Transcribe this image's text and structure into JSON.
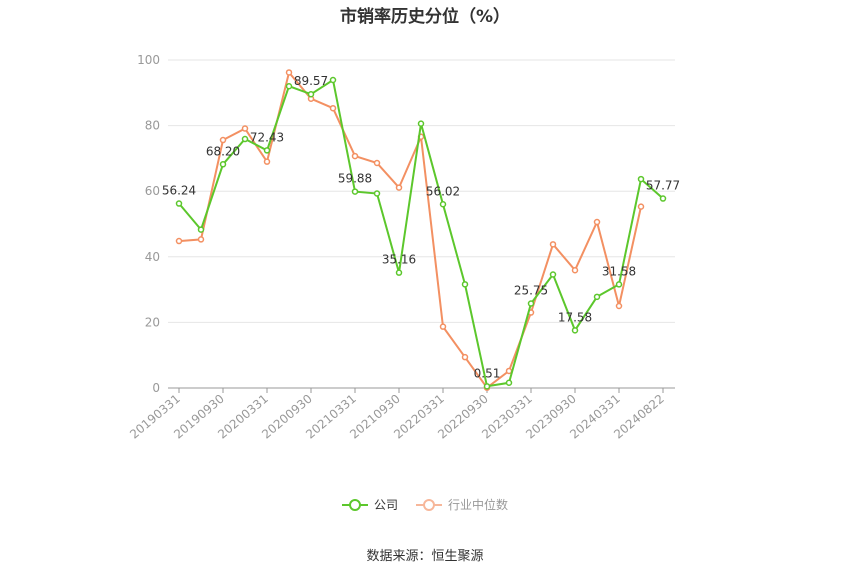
{
  "title": "市销率历史分位（%）",
  "source": "数据来源：恒生聚源",
  "colors": {
    "company": "#5cc72c",
    "industry": "#f39062",
    "grid": "#e6e6e6",
    "axis": "#999999"
  },
  "chart_data": {
    "type": "line",
    "title": "市销率历史分位（%）",
    "ylim": [
      0,
      100
    ],
    "y_ticks": [
      0,
      20,
      40,
      60,
      80,
      100
    ],
    "x": [
      "20190331",
      "20190630",
      "20190930",
      "20191231",
      "20200331",
      "20200630",
      "20200930",
      "20201231",
      "20210331",
      "20210630",
      "20210930",
      "20211231",
      "20220331",
      "20220630",
      "20220930",
      "20221231",
      "20230331",
      "20230630",
      "20230930",
      "20231231",
      "20240331",
      "20240630",
      "20240822"
    ],
    "x_tick_labels": [
      "20190331",
      "20190930",
      "20200331",
      "20200930",
      "20210331",
      "20210930",
      "20220331",
      "20220930",
      "20230331",
      "20230930",
      "20240331",
      "20240822"
    ],
    "legend_position": "bottom",
    "grid": true,
    "series": [
      {
        "name": "公司",
        "values": [
          56.24,
          48.3,
          68.2,
          75.9,
          72.43,
          92.0,
          89.57,
          93.9,
          59.88,
          59.3,
          35.16,
          80.6,
          56.02,
          31.6,
          0.51,
          1.6,
          25.75,
          34.6,
          17.58,
          27.8,
          31.58,
          63.7,
          57.77
        ],
        "labels": [
          "56.24",
          null,
          "68.20",
          null,
          "72.43",
          null,
          "89.57",
          null,
          "59.88",
          null,
          "35.16",
          null,
          "56.02",
          null,
          "0.51",
          null,
          "25.75",
          null,
          "17.58",
          null,
          "31.58",
          null,
          "57.77"
        ]
      },
      {
        "name": "行业中位数",
        "values": [
          44.8,
          45.3,
          75.6,
          79.1,
          69.0,
          96.2,
          88.2,
          85.3,
          70.7,
          68.6,
          61.1,
          76.6,
          18.7,
          9.4,
          0.1,
          5.2,
          23.0,
          43.8,
          35.9,
          50.6,
          25.0,
          55.3,
          null
        ]
      }
    ]
  }
}
